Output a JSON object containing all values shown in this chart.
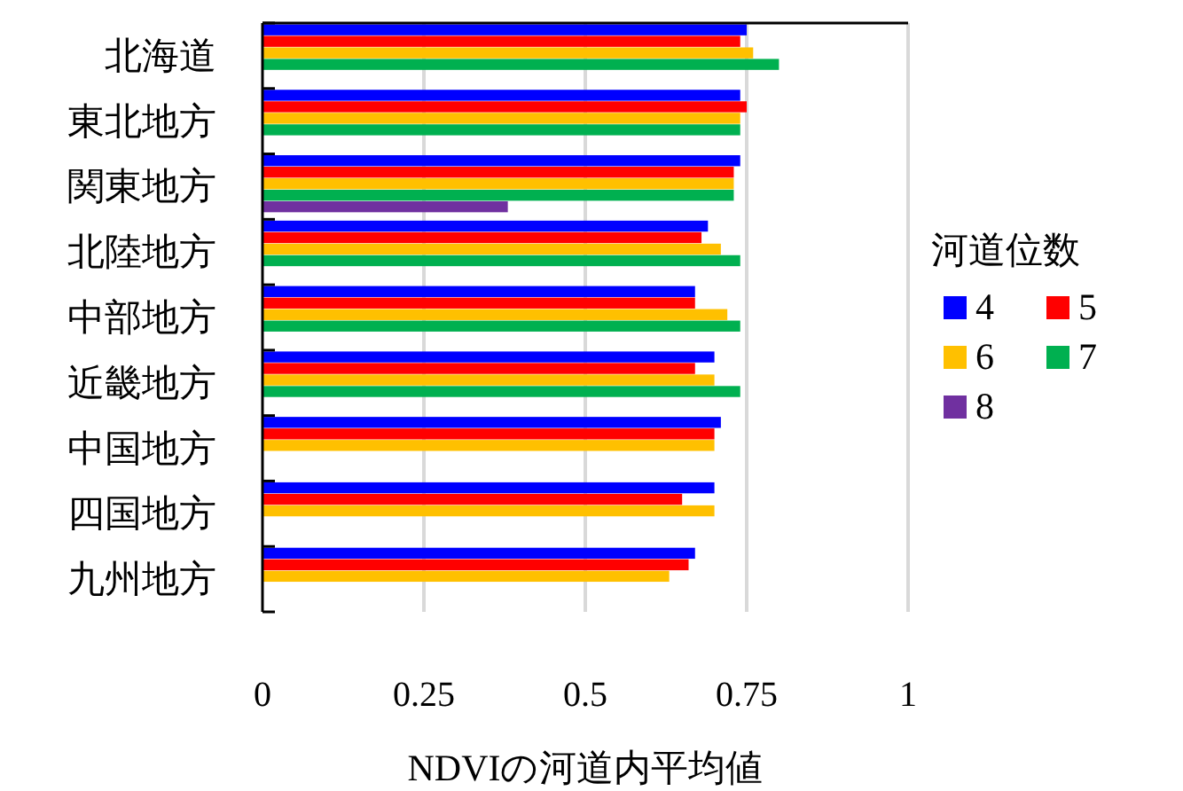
{
  "chart_data": {
    "type": "bar",
    "orientation": "horizontal",
    "xlabel": "NDVIの河道内平均値",
    "legend_title": "河道位数",
    "legend": "right",
    "grid": "x",
    "xlim": [
      0,
      1
    ],
    "xticks": [
      0,
      0.25,
      0.5,
      0.75,
      1
    ],
    "categories": [
      "北海道",
      "東北地方",
      "関東地方",
      "北陸地方",
      "中部地方",
      "近畿地方",
      "中国地方",
      "四国地方",
      "九州地方"
    ],
    "series": [
      {
        "name": "4",
        "color": "#0000ff",
        "values": [
          0.75,
          0.74,
          0.74,
          0.69,
          0.67,
          0.7,
          0.71,
          0.7,
          0.67
        ]
      },
      {
        "name": "5",
        "color": "#ff0000",
        "values": [
          0.74,
          0.75,
          0.73,
          0.68,
          0.67,
          0.67,
          0.7,
          0.65,
          0.66
        ]
      },
      {
        "name": "6",
        "color": "#ffc000",
        "values": [
          0.76,
          0.74,
          0.73,
          0.71,
          0.72,
          0.7,
          0.7,
          0.7,
          0.63
        ]
      },
      {
        "name": "7",
        "color": "#00b050",
        "values": [
          0.8,
          0.74,
          0.73,
          0.74,
          0.74,
          0.74,
          null,
          null,
          null
        ]
      },
      {
        "name": "8",
        "color": "#7030a0",
        "values": [
          null,
          null,
          0.38,
          null,
          null,
          null,
          null,
          null,
          null
        ]
      }
    ]
  }
}
